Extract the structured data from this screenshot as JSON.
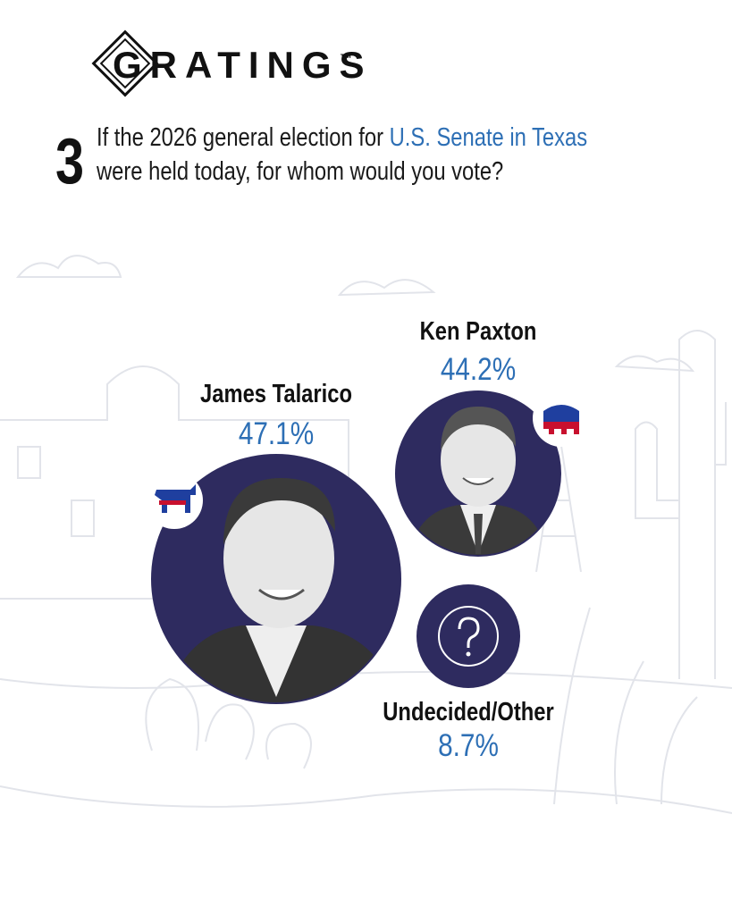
{
  "header": {
    "logo": "GRATINGS",
    "trademark": "™"
  },
  "question": {
    "number": "3",
    "text_before": "If the 2026 general election for ",
    "highlight": "U.S. Senate in Texas",
    "text_after": "were held today, for whom would you vote?"
  },
  "results": [
    {
      "name": "James Talarico",
      "share": "47.1%"
    },
    {
      "name": "Ken Paxton",
      "share": "44.2%"
    },
    {
      "name": "Undecided/Other",
      "share": "8.7%"
    }
  ]
}
